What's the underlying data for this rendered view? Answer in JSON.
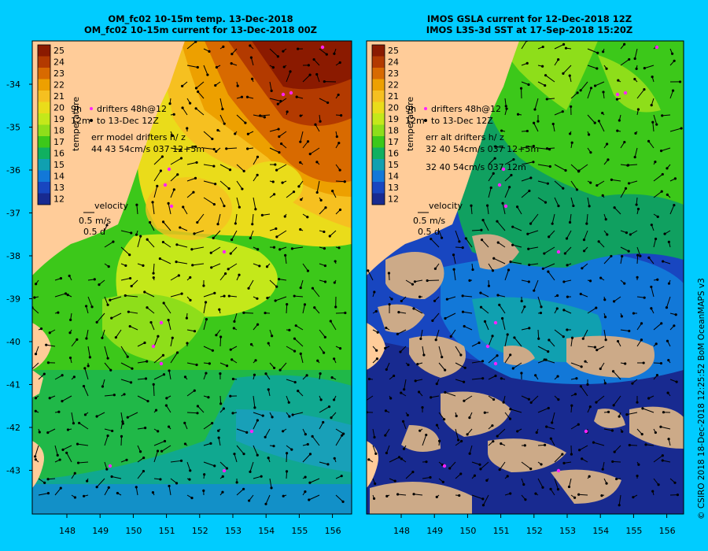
{
  "panels": [
    {
      "title_line1": "OM_fc02 10-15m temp. 13-Dec-2018",
      "title_line2": "OM_fc02 10-15m current for 13-Dec-2018 00Z",
      "legend": [
        "drifters 48h@12",
        "to 13-Dec 12Z"
      ],
      "legend_side": [
        "9h",
        "12m"
      ],
      "err_lines": [
        "err model drifters h/ z",
        "44 43 54cm/s 037 12+5m"
      ],
      "velocity_label": "velocity",
      "velocity_speed": "0.5 m/s",
      "velocity_time": "0.5 d"
    },
    {
      "title_line1": "IMOS GSLA current for 12-Dec-2018 12Z",
      "title_line2": "IMOS L3S-3d SST at 17-Sep-2018 15:20Z",
      "legend": [
        "drifters 48h@12",
        "to 13-Dec 12Z"
      ],
      "legend_side": [
        "9h",
        "12m"
      ],
      "err_lines": [
        "err alt drifters h/ z",
        "32 40 54cm/s 037 12+5m",
        "32 40 54cm/s 037 12m"
      ],
      "velocity_label": "velocity",
      "velocity_speed": "0.5 m/s",
      "velocity_time": "0.5 d"
    }
  ],
  "colorbar": {
    "title": "temperature",
    "ticks": [
      "25",
      "24",
      "23",
      "22",
      "21",
      "20",
      "19",
      "18",
      "17",
      "16",
      "15",
      "14",
      "13",
      "12"
    ],
    "colors": [
      "#8b1a00",
      "#b33a00",
      "#d86a00",
      "#eda000",
      "#f6c020",
      "#eadc1a",
      "#c4e81a",
      "#8ede1a",
      "#3cc81a",
      "#10b060",
      "#10a0b0",
      "#1278d8",
      "#1846c0",
      "#182a90"
    ]
  },
  "lat_labels": [
    "-34",
    "-35",
    "-36",
    "-37",
    "-38",
    "-39",
    "-40",
    "-41",
    "-42",
    "-43"
  ],
  "lon_labels_left": [
    "148",
    "149",
    "150",
    "151",
    "152",
    "153",
    "154",
    "155",
    "156"
  ],
  "lon_labels_right": [
    "148",
    "149",
    "150",
    "151",
    "152",
    "153",
    "154",
    "155",
    "156"
  ],
  "credit": "© CSIRO 2018   18-Dec-2018 12:25:52 BoM OceanMAPS v3",
  "colors": {
    "land": "#ffcc99",
    "cloud": "#ccaa88",
    "drifter": "#ff22ff",
    "background": "#00ccff"
  }
}
